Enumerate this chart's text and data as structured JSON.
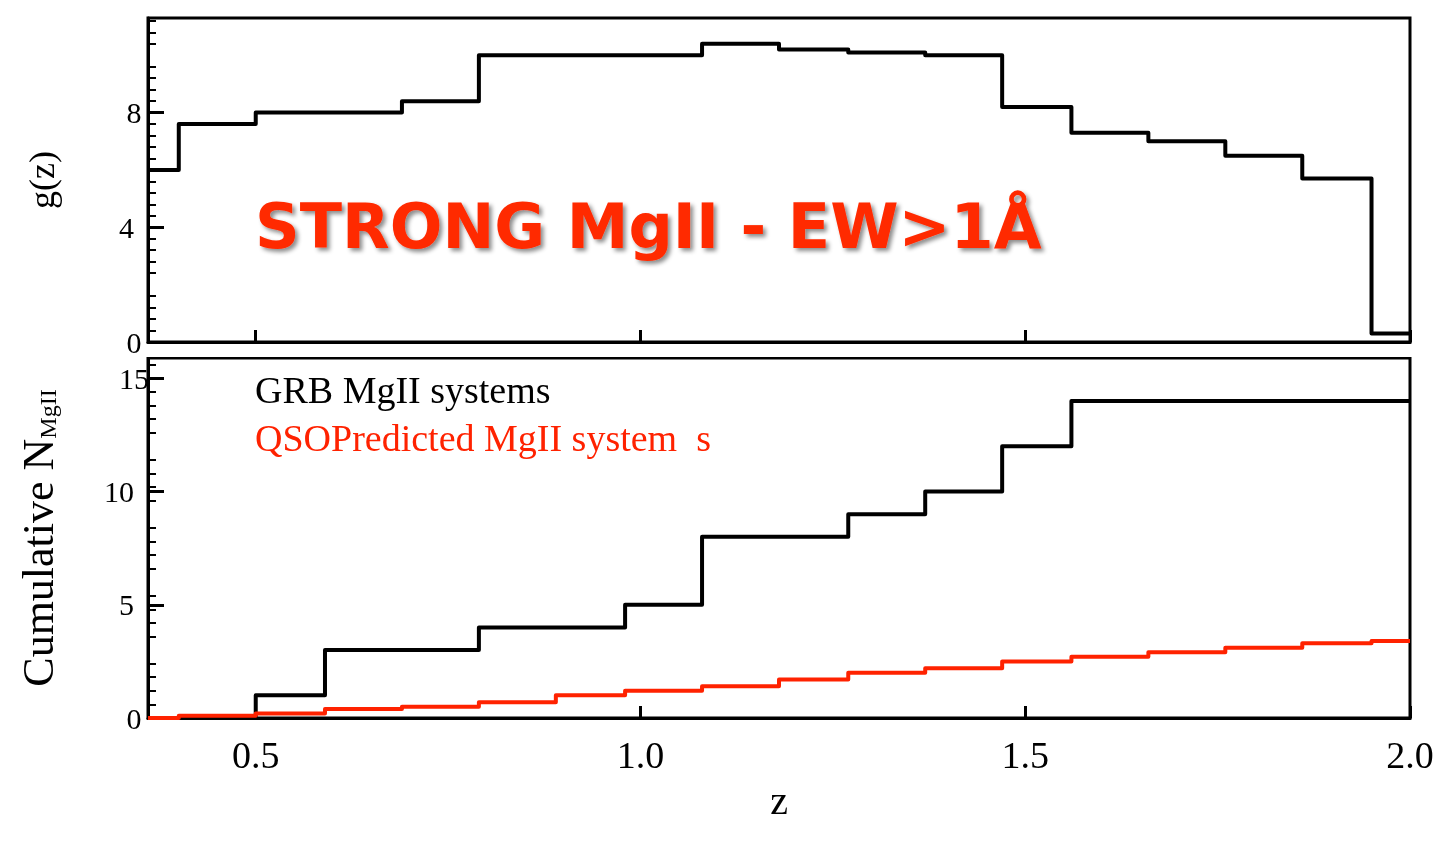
{
  "chart_data": [
    {
      "type": "step",
      "title": "STRONG MgII - EW>1Å",
      "ylabel": "g(z)",
      "x": [
        0.36,
        0.4,
        0.5,
        0.69,
        0.79,
        1.08,
        1.18,
        1.27,
        1.37,
        1.47,
        1.56,
        1.66,
        1.76,
        1.86,
        1.95,
        2.0
      ],
      "series": [
        {
          "color": "#000000",
          "values": [
            6.0,
            7.6,
            8.0,
            8.4,
            10.0,
            10.4,
            10.2,
            10.1,
            10.0,
            8.2,
            7.3,
            7.0,
            6.5,
            5.7,
            0.3,
            0.3
          ]
        }
      ],
      "xlim": [
        0.36,
        2.0
      ],
      "xticks": [
        0.5,
        1,
        1.5,
        2
      ],
      "ylim": [
        0,
        11.3
      ],
      "yticks": [
        0,
        4,
        8
      ],
      "tick_labels": "y",
      "grid": false,
      "legend": false
    },
    {
      "type": "step",
      "xlabel": "z",
      "ylabel": "Cumulative N$_{MgII}$",
      "series": [
        {
          "name": "GRB MgII systems",
          "color": "#000000",
          "x": [
            0.36,
            0.5,
            0.59,
            0.79,
            0.98,
            1.08,
            1.27,
            1.37,
            1.47,
            1.56,
            2.0
          ],
          "values": [
            0,
            1,
            3,
            4,
            5,
            8,
            9,
            10,
            12,
            14,
            14
          ]
        },
        {
          "name": "QSOPredicted MgII system  s",
          "color": "#ff2200",
          "x": [
            0.36,
            0.4,
            0.5,
            0.59,
            0.69,
            0.79,
            0.89,
            0.98,
            1.08,
            1.18,
            1.27,
            1.37,
            1.47,
            1.56,
            1.66,
            1.76,
            1.86,
            1.95,
            2.0
          ],
          "values": [
            0.0,
            0.1,
            0.2,
            0.4,
            0.5,
            0.7,
            1.0,
            1.2,
            1.4,
            1.7,
            2.0,
            2.2,
            2.5,
            2.7,
            2.9,
            3.1,
            3.3,
            3.4,
            3.4
          ]
        }
      ],
      "xlim": [
        0.36,
        2.0
      ],
      "xticks": [
        0.5,
        {
          "value": 1,
          "label": "1.0"
        },
        1.5,
        {
          "value": 2,
          "label": "2.0"
        }
      ],
      "ylim": [
        0,
        15.9
      ],
      "yticks": [
        0,
        5,
        10,
        15
      ],
      "grid": false,
      "legend": "top left"
    }
  ]
}
